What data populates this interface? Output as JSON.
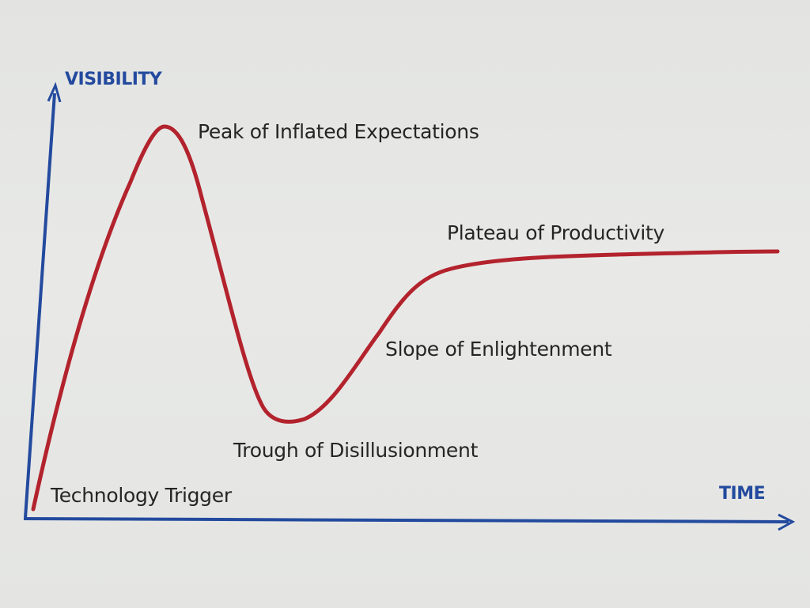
{
  "diagram": {
    "y_axis_label": "VISIBILITY",
    "x_axis_label": "TIME",
    "phases": [
      {
        "key": "trigger",
        "label": "Technology Trigger"
      },
      {
        "key": "peak",
        "label": "Peak of Inflated Expectations"
      },
      {
        "key": "trough",
        "label": "Trough of Disillusionment"
      },
      {
        "key": "slope",
        "label": "Slope of Enlightenment"
      },
      {
        "key": "plateau",
        "label": "Plateau of Productivity"
      }
    ],
    "colors": {
      "axis": "#234a9e",
      "curve": "#b3232d",
      "text": "#252525"
    }
  }
}
